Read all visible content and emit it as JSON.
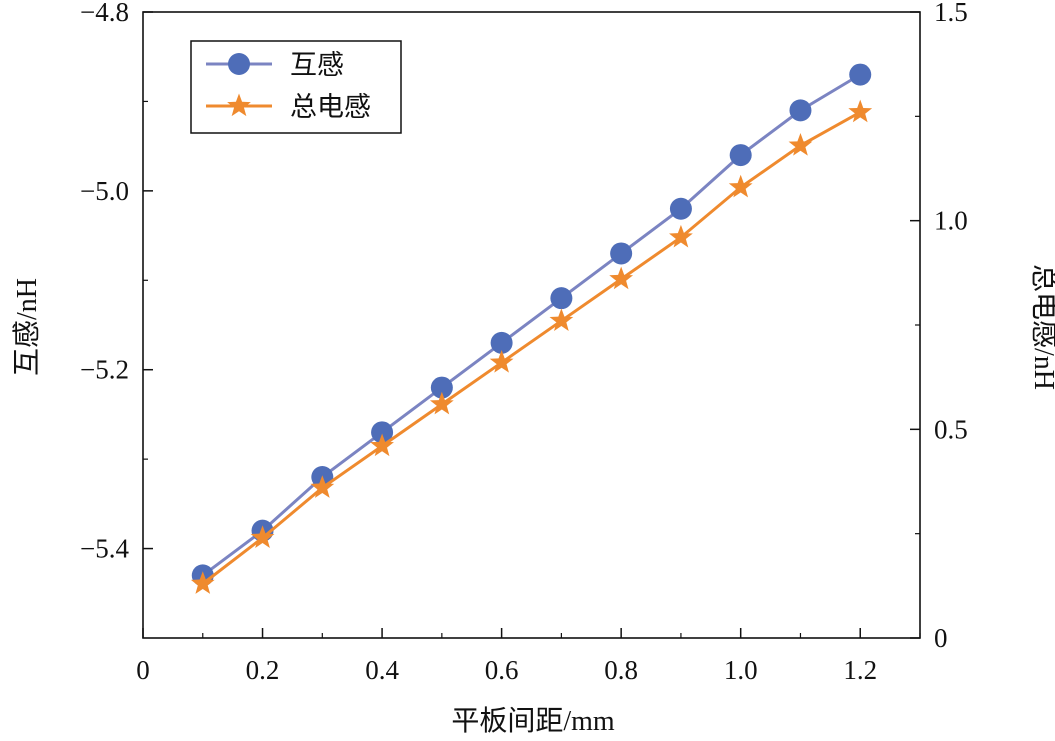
{
  "chart_data": {
    "type": "line",
    "xlabel": "平板间距/mm",
    "ylabel_left": "互感/nH",
    "ylabel_right": "总电感/nH",
    "xlim": [
      0,
      1.3
    ],
    "ylim_left": [
      -5.5,
      -4.8
    ],
    "ylim_right": [
      0,
      1.5
    ],
    "x_ticks": [
      0,
      0.2,
      0.4,
      0.6,
      0.8,
      1.0,
      1.2
    ],
    "x_tick_labels": [
      "0",
      "0.2",
      "0.4",
      "0.6",
      "0.8",
      "1.0",
      "1.2"
    ],
    "y_left_ticks": [
      -5.4,
      -5.2,
      -5.0,
      -4.8
    ],
    "y_left_tick_labels": [
      "−5.4",
      "−5.2",
      "−5.0",
      "−4.8"
    ],
    "y_right_ticks": [
      0,
      0.5,
      1.0,
      1.5
    ],
    "y_right_tick_labels": [
      "0",
      "0.5",
      "1.0",
      "1.5"
    ],
    "x": [
      0.1,
      0.2,
      0.3,
      0.4,
      0.5,
      0.6,
      0.7,
      0.8,
      0.9,
      1.0,
      1.1,
      1.2
    ],
    "series": [
      {
        "name": "互感",
        "axis": "left",
        "marker": "circle",
        "color": "#7b84c2",
        "marker_color": "#4e6db8",
        "values": [
          -5.43,
          -5.38,
          -5.32,
          -5.27,
          -5.22,
          -5.17,
          -5.12,
          -5.07,
          -5.02,
          -4.96,
          -4.91,
          -4.87
        ]
      },
      {
        "name": "总电感",
        "axis": "right",
        "marker": "star",
        "color": "#ef8a2e",
        "marker_color": "#ef8a2e",
        "values": [
          0.13,
          0.24,
          0.36,
          0.46,
          0.56,
          0.66,
          0.76,
          0.86,
          0.96,
          1.08,
          1.18,
          1.26
        ]
      }
    ],
    "legend_position": "top-left"
  }
}
